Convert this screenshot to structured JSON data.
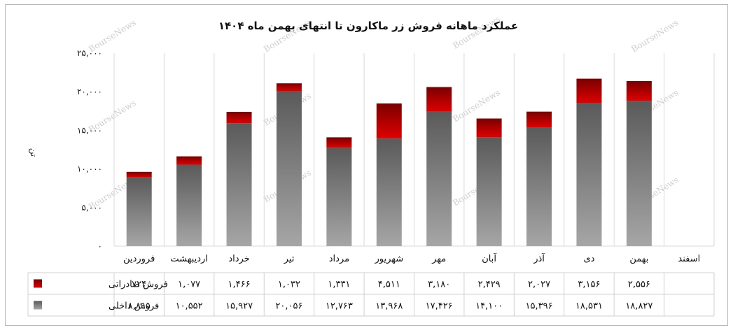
{
  "chart_data": {
    "type": "bar",
    "stacked": true,
    "title": "عملکرد ماهانه فروش زر ماکارون تا انتهای بهمن ماه ۱۴۰۴",
    "ylabel": "تن",
    "ylim": [
      0,
      25000
    ],
    "yticks": [
      "۰",
      "۵,۰۰۰",
      "۱۰,۰۰۰",
      "۱۵,۰۰۰",
      "۲۰,۰۰۰",
      "۲۵,۰۰۰"
    ],
    "ytick_values": [
      0,
      5000,
      10000,
      15000,
      20000,
      25000
    ],
    "grid": true,
    "categories": [
      "فروردین",
      "اردیبهشت",
      "خرداد",
      "تیر",
      "مرداد",
      "شهریور",
      "مهر",
      "آبان",
      "آذر",
      "دی",
      "بهمن",
      "اسفند"
    ],
    "series": [
      {
        "name": "فروش داخلی",
        "color_top": "#5a5a5a",
        "color_bottom": "#a6a6a6",
        "values": [
          8895,
          10552,
          15927,
          20056,
          12763,
          13968,
          17426,
          14100,
          15396,
          18531,
          18827,
          null
        ],
        "labels": [
          "۸,۸۹۵",
          "۱۰,۵۵۲",
          "۱۵,۹۲۷",
          "۲۰,۰۵۶",
          "۱۲,۷۶۳",
          "۱۳,۹۶۸",
          "۱۷,۴۲۶",
          "۱۴,۱۰۰",
          "۱۵,۳۹۶",
          "۱۸,۵۳۱",
          "۱۸,۸۲۷",
          ""
        ]
      },
      {
        "name": "فروش صادراتی",
        "color_top": "#7a0000",
        "color_bottom": "#e00000",
        "values": [
          724,
          1077,
          1466,
          1032,
          1331,
          4511,
          3180,
          2429,
          2027,
          3156,
          2556,
          null
        ],
        "labels": [
          "۷۲۴",
          "۱,۰۷۷",
          "۱,۴۶۶",
          "۱,۰۳۲",
          "۱,۳۳۱",
          "۴,۵۱۱",
          "۳,۱۸۰",
          "۲,۴۲۹",
          "۲,۰۲۷",
          "۳,۱۵۶",
          "۲,۵۵۶",
          ""
        ]
      }
    ],
    "table_rows": [
      "فروش صادراتی",
      "فروش داخلی"
    ],
    "watermark": "BourseNews"
  }
}
